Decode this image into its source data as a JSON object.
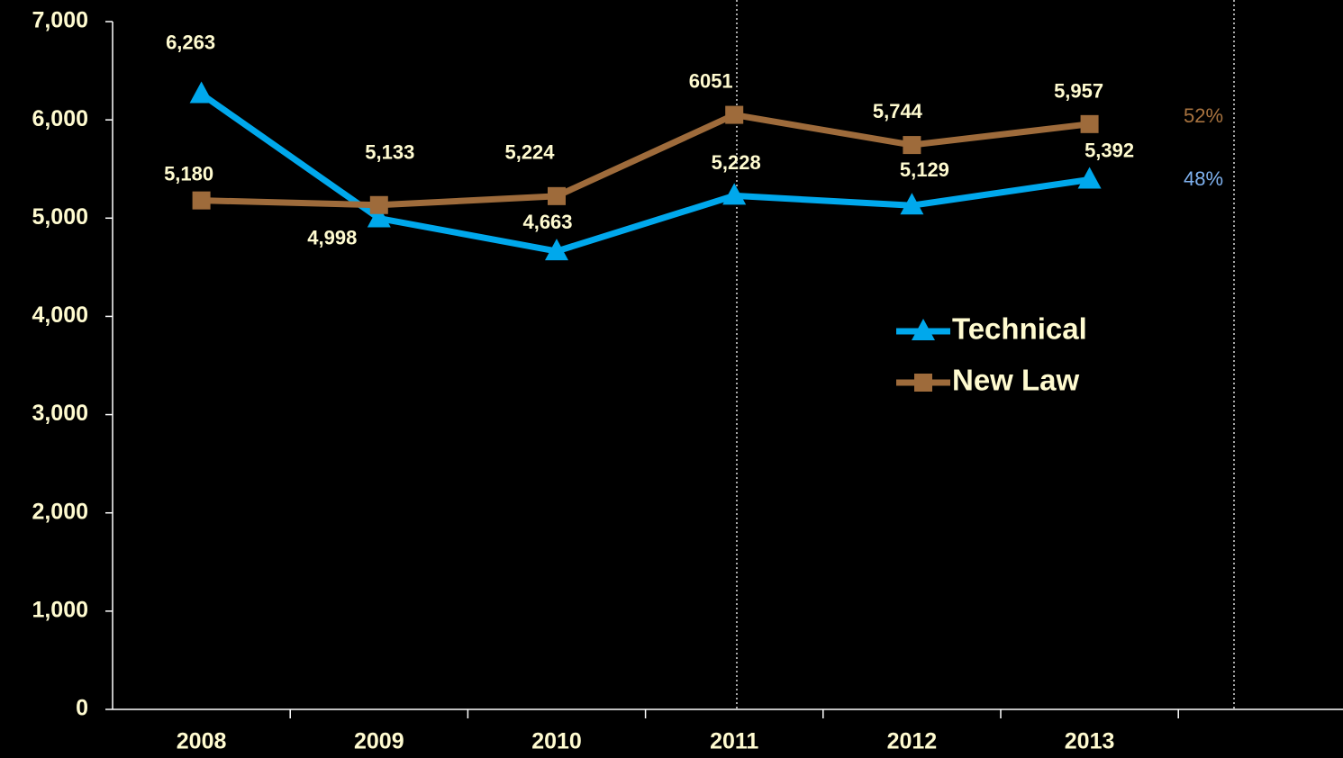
{
  "chart_data": {
    "type": "line",
    "categories": [
      "2008",
      "2009",
      "2010",
      "2011",
      "2012",
      "2013",
      null
    ],
    "series": [
      {
        "name": "Technical",
        "color": "#00a8ec",
        "marker": "triangle",
        "values": [
          6263,
          4998,
          4663,
          5228,
          5129,
          5392,
          null
        ],
        "value_labels": [
          "6,263",
          "4,998",
          "4,663",
          "5,228",
          "5,129",
          "5,392",
          null
        ]
      },
      {
        "name": "New Law",
        "color": "#9e6b3b",
        "marker": "square",
        "values": [
          5180,
          5133,
          5224,
          6051,
          5744,
          5957,
          null
        ],
        "value_labels": [
          "5,180",
          "5,133",
          "5,224",
          "6051",
          "5,744",
          "5,957",
          null
        ]
      }
    ],
    "annotations": [
      {
        "text": "52%",
        "color": "#a8733f"
      },
      {
        "text": "48%",
        "color": "#7fb2f0"
      }
    ],
    "ylim": [
      0,
      7000
    ],
    "yticks": [
      0,
      {
        "value": 1000,
        "label": "1,000"
      },
      {
        "value": 2000,
        "label": "2,000"
      },
      {
        "value": 3000,
        "label": "3,000"
      },
      {
        "value": 4000,
        "label": "4,000"
      },
      {
        "value": 5000,
        "label": "5,000"
      },
      {
        "value": 6000,
        "label": "6,000"
      },
      {
        "value": 7000,
        "label": "7,000"
      }
    ],
    "grid": false
  }
}
